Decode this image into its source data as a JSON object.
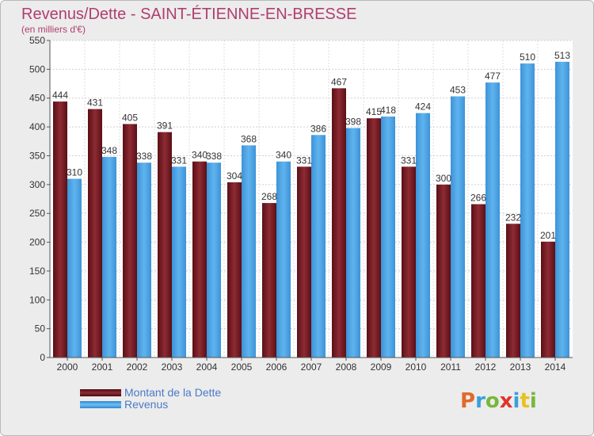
{
  "title": "Revenus/Dette - SAINT-ÉTIENNE-EN-BRESSE",
  "subtitle": "(en milliers d'€)",
  "legend": [
    {
      "label": "Montant de la Dette",
      "color": "#7a1c24"
    },
    {
      "label": "Revenus",
      "color": "#4a9fe0"
    }
  ],
  "logo": {
    "letters": [
      "P",
      "r",
      "o",
      "x",
      "i",
      "t",
      "i"
    ],
    "colors": [
      "#e06a2a",
      "#3aa0d8",
      "#78b83a",
      "#e0342a",
      "#3aa0d8",
      "#e8c020",
      "#78b83a"
    ]
  },
  "chart_data": {
    "type": "bar",
    "title": "Revenus/Dette - SAINT-ÉTIENNE-EN-BRESSE",
    "ylabel": "(en milliers d'€)",
    "categories": [
      "2000",
      "2001",
      "2002",
      "2003",
      "2004",
      "2005",
      "2006",
      "2007",
      "2008",
      "2009",
      "2010",
      "2011",
      "2012",
      "2013",
      "2014"
    ],
    "series": [
      {
        "name": "Montant de la Dette",
        "values": [
          444,
          431,
          405,
          391,
          340,
          304,
          268,
          331,
          467,
          415,
          331,
          300,
          266,
          232,
          201
        ]
      },
      {
        "name": "Revenus",
        "values": [
          310,
          348,
          338,
          331,
          338,
          368,
          340,
          386,
          398,
          418,
          424,
          453,
          477,
          510,
          513
        ]
      }
    ],
    "ylim": [
      0,
      550
    ],
    "yticks": [
      "0",
      "50",
      "100",
      "150",
      "200",
      "250",
      "300",
      "350",
      "400",
      "450",
      "500",
      "550"
    ],
    "grid": true,
    "legend_position": "bottom-left"
  }
}
